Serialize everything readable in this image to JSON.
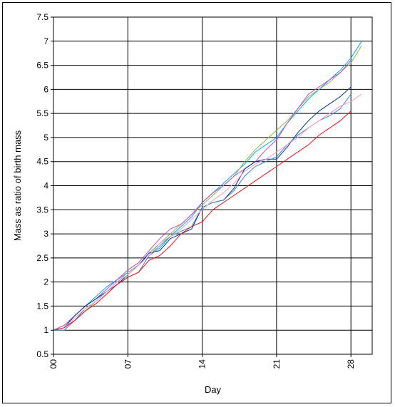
{
  "chart_data": {
    "type": "line",
    "xlabel": "Day",
    "ylabel": "Mass as ratio of birth mass",
    "xlim": [
      0,
      30
    ],
    "ylim": [
      0.5,
      7.5
    ],
    "x_ticks": [
      {
        "value": 0,
        "label": "00"
      },
      {
        "value": 7,
        "label": "07"
      },
      {
        "value": 14,
        "label": "14"
      },
      {
        "value": 21,
        "label": "21"
      },
      {
        "value": 28,
        "label": "28"
      }
    ],
    "y_ticks": [
      {
        "value": 0.5,
        "label": "0.5"
      },
      {
        "value": 1,
        "label": "1"
      },
      {
        "value": 1.5,
        "label": "1.5"
      },
      {
        "value": 2,
        "label": "2"
      },
      {
        "value": 2.5,
        "label": "2.5"
      },
      {
        "value": 3,
        "label": "3"
      },
      {
        "value": 3.5,
        "label": "3.5"
      },
      {
        "value": 4,
        "label": "4"
      },
      {
        "value": 4.5,
        "label": "4.5"
      },
      {
        "value": 5,
        "label": "5"
      },
      {
        "value": 5.5,
        "label": "5.5"
      },
      {
        "value": 6,
        "label": "6"
      },
      {
        "value": 6.5,
        "label": "6.5"
      },
      {
        "value": 7,
        "label": "7"
      },
      {
        "value": 7.5,
        "label": "7.5"
      }
    ],
    "grid": true,
    "series": [
      {
        "color": "#00aaff",
        "x": [
          0,
          1,
          2,
          3,
          4,
          5,
          6,
          7,
          8,
          9,
          10,
          11,
          12,
          13,
          14,
          15,
          16,
          17,
          18,
          19,
          20,
          21,
          22,
          23,
          24,
          25,
          26,
          27,
          28,
          29
        ],
        "y": [
          1.0,
          1.1,
          1.3,
          1.5,
          1.7,
          1.9,
          2.05,
          2.2,
          2.35,
          2.55,
          2.75,
          2.95,
          3.15,
          3.35,
          3.65,
          3.85,
          4.05,
          4.25,
          4.45,
          4.7,
          4.85,
          5.0,
          5.3,
          5.55,
          5.8,
          6.0,
          6.2,
          6.4,
          6.65,
          7.0
        ]
      },
      {
        "color": "#80c040",
        "x": [
          0,
          1,
          2,
          3,
          4,
          5,
          6,
          7,
          8,
          9,
          10,
          11,
          12,
          13,
          14,
          15,
          16,
          17,
          18,
          19,
          20,
          21,
          22,
          23,
          24,
          25,
          26,
          27,
          28,
          29
        ],
        "y": [
          1.0,
          1.05,
          1.2,
          1.4,
          1.6,
          1.8,
          2.0,
          2.2,
          2.35,
          2.6,
          2.8,
          3.0,
          3.2,
          3.4,
          3.6,
          3.8,
          4.0,
          4.2,
          4.5,
          4.75,
          4.95,
          5.15,
          5.35,
          5.6,
          5.85,
          6.0,
          6.15,
          6.35,
          6.55,
          6.9
        ]
      },
      {
        "color": "#cc44cc",
        "x": [
          0,
          1,
          2,
          3,
          4,
          5,
          6,
          7,
          8,
          9,
          10,
          11,
          12,
          13,
          14,
          15,
          16,
          17,
          18,
          19,
          20,
          21,
          22,
          23,
          24,
          25,
          26,
          27,
          28
        ],
        "y": [
          1.0,
          1.1,
          1.3,
          1.5,
          1.65,
          1.85,
          2.05,
          2.25,
          2.4,
          2.65,
          2.9,
          3.1,
          3.2,
          3.4,
          3.65,
          3.85,
          4.0,
          4.2,
          4.35,
          4.5,
          4.75,
          4.95,
          5.3,
          5.6,
          5.9,
          6.05,
          6.2,
          6.35,
          6.6
        ]
      },
      {
        "color": "#003399",
        "x": [
          0,
          1,
          2,
          3,
          4,
          5,
          6,
          7,
          8,
          9,
          10,
          11,
          12,
          13,
          14,
          15,
          16,
          17,
          18,
          19,
          20,
          21,
          22,
          23,
          24,
          25,
          26,
          27,
          28
        ],
        "y": [
          1.0,
          1.05,
          1.3,
          1.5,
          1.65,
          1.8,
          1.95,
          2.15,
          2.35,
          2.6,
          2.65,
          2.9,
          3.0,
          3.1,
          3.55,
          3.65,
          3.7,
          3.95,
          4.35,
          4.5,
          4.55,
          4.55,
          4.8,
          5.1,
          5.35,
          5.55,
          5.7,
          5.85,
          6.05
        ]
      },
      {
        "color": "#3388cc",
        "x": [
          0,
          1,
          2,
          3,
          4,
          5,
          6,
          7,
          8,
          9,
          10,
          11,
          12,
          13,
          14,
          15,
          16,
          17,
          18,
          19,
          20,
          21,
          22,
          23,
          24,
          25,
          26,
          27,
          28
        ],
        "y": [
          1.0,
          1.0,
          1.2,
          1.45,
          1.6,
          1.8,
          1.95,
          2.1,
          2.2,
          2.55,
          2.7,
          2.95,
          3.05,
          3.15,
          3.55,
          3.65,
          3.7,
          3.9,
          4.2,
          4.4,
          4.5,
          4.6,
          4.85,
          5.05,
          5.2,
          5.35,
          5.45,
          5.6,
          5.9
        ]
      },
      {
        "color": "#ff99cc",
        "x": [
          0,
          1,
          2,
          3,
          4,
          5,
          6,
          7,
          8,
          9,
          10,
          11,
          12,
          13,
          14,
          15,
          16,
          17,
          18,
          19,
          20,
          21,
          22,
          23,
          24,
          25,
          26,
          27,
          28,
          29
        ],
        "y": [
          1.0,
          1.05,
          1.25,
          1.45,
          1.6,
          1.8,
          2.0,
          2.15,
          2.35,
          2.55,
          2.8,
          2.95,
          3.1,
          3.3,
          3.5,
          3.7,
          3.85,
          4.05,
          4.3,
          4.45,
          4.55,
          4.7,
          4.85,
          5.0,
          5.2,
          5.35,
          5.5,
          5.65,
          5.75,
          5.9
        ]
      },
      {
        "color": "#ee1111",
        "x": [
          0,
          1,
          2,
          3,
          4,
          5,
          6,
          7,
          8,
          9,
          10,
          11,
          12,
          13,
          14,
          15,
          16,
          17,
          18,
          19,
          20,
          21,
          22,
          23,
          24,
          25,
          26,
          27,
          28
        ],
        "y": [
          1.0,
          1.05,
          1.2,
          1.4,
          1.55,
          1.75,
          1.95,
          2.1,
          2.2,
          2.45,
          2.55,
          2.75,
          3.0,
          3.15,
          3.25,
          3.5,
          3.65,
          3.8,
          3.95,
          4.1,
          4.25,
          4.4,
          4.55,
          4.7,
          4.85,
          5.05,
          5.2,
          5.35,
          5.55
        ]
      }
    ]
  }
}
